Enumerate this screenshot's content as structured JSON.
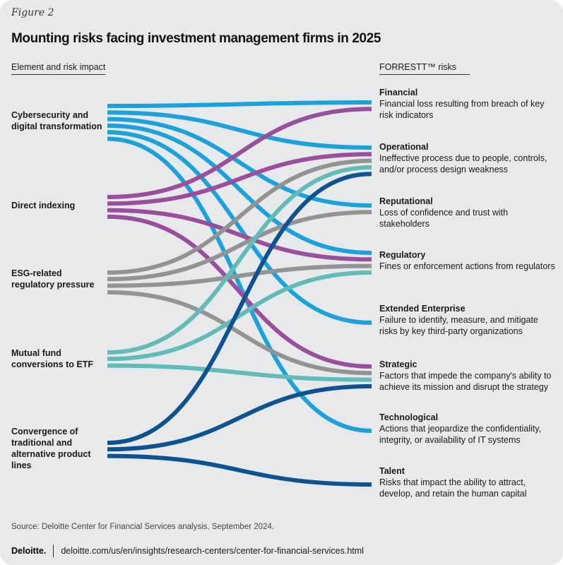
{
  "figure_label": "Figure 2",
  "title": "Mounting risks facing investment management firms in 2025",
  "left_header": "Element and risk impact",
  "right_header": "FORRESTT™ risks",
  "elements": [
    {
      "id": "cyber",
      "label": "Cybersecurity and digital transformation",
      "color": "#1ba1dc"
    },
    {
      "id": "direct",
      "label": "Direct indexing",
      "color": "#9a4f9e"
    },
    {
      "id": "esg",
      "label": "ESG-related regulatory pressure",
      "color": "#939393"
    },
    {
      "id": "mutual",
      "label": "Mutual fund conversions to ETF",
      "color": "#62bbb6"
    },
    {
      "id": "conv",
      "label": "Convergence of traditional and alternative product lines",
      "color": "#0d5291"
    }
  ],
  "risks": [
    {
      "id": "financial",
      "name": "Financial",
      "description": "Financial loss resulting from breach of key risk indicators"
    },
    {
      "id": "operational",
      "name": "Operational",
      "description": "Ineffective process due to people, controls, and/or process design weakness"
    },
    {
      "id": "reputational",
      "name": "Reputational",
      "description": "Loss of confidence and trust with stakeholders"
    },
    {
      "id": "regulatory",
      "name": "Regulatory",
      "description": "Fines or enforcement actions from regulators"
    },
    {
      "id": "extended",
      "name": "Extended Enterprise",
      "description": "Failure to identify, measure, and mitigate risks by key third-party organizations"
    },
    {
      "id": "strategic",
      "name": "Strategic",
      "description": "Factors that impede the company's ability to achieve its mission and disrupt the strategy"
    },
    {
      "id": "technological",
      "name": "Technological",
      "description": "Actions that jeopardize the confidentiality, integrity, or availability of IT systems"
    },
    {
      "id": "talent",
      "name": "Talent",
      "description": "Risks that impact the ability to attract, develop, and retain the human capital"
    }
  ],
  "links": [
    {
      "from": "cyber",
      "to": "financial"
    },
    {
      "from": "cyber",
      "to": "operational"
    },
    {
      "from": "cyber",
      "to": "reputational"
    },
    {
      "from": "cyber",
      "to": "regulatory"
    },
    {
      "from": "cyber",
      "to": "extended"
    },
    {
      "from": "cyber",
      "to": "technological"
    },
    {
      "from": "direct",
      "to": "financial"
    },
    {
      "from": "direct",
      "to": "operational"
    },
    {
      "from": "direct",
      "to": "regulatory"
    },
    {
      "from": "direct",
      "to": "strategic"
    },
    {
      "from": "esg",
      "to": "operational"
    },
    {
      "from": "esg",
      "to": "reputational"
    },
    {
      "from": "esg",
      "to": "regulatory"
    },
    {
      "from": "esg",
      "to": "strategic"
    },
    {
      "from": "mutual",
      "to": "operational"
    },
    {
      "from": "mutual",
      "to": "regulatory"
    },
    {
      "from": "mutual",
      "to": "strategic"
    },
    {
      "from": "conv",
      "to": "operational"
    },
    {
      "from": "conv",
      "to": "strategic"
    },
    {
      "from": "conv",
      "to": "talent"
    }
  ],
  "source": "Source: Deloitte Center for Financial Services analysis, September 2024.",
  "logo": "Deloitte.",
  "url": "deloitte.com/us/en/insights/research-centers/center-for-financial-services.html"
}
